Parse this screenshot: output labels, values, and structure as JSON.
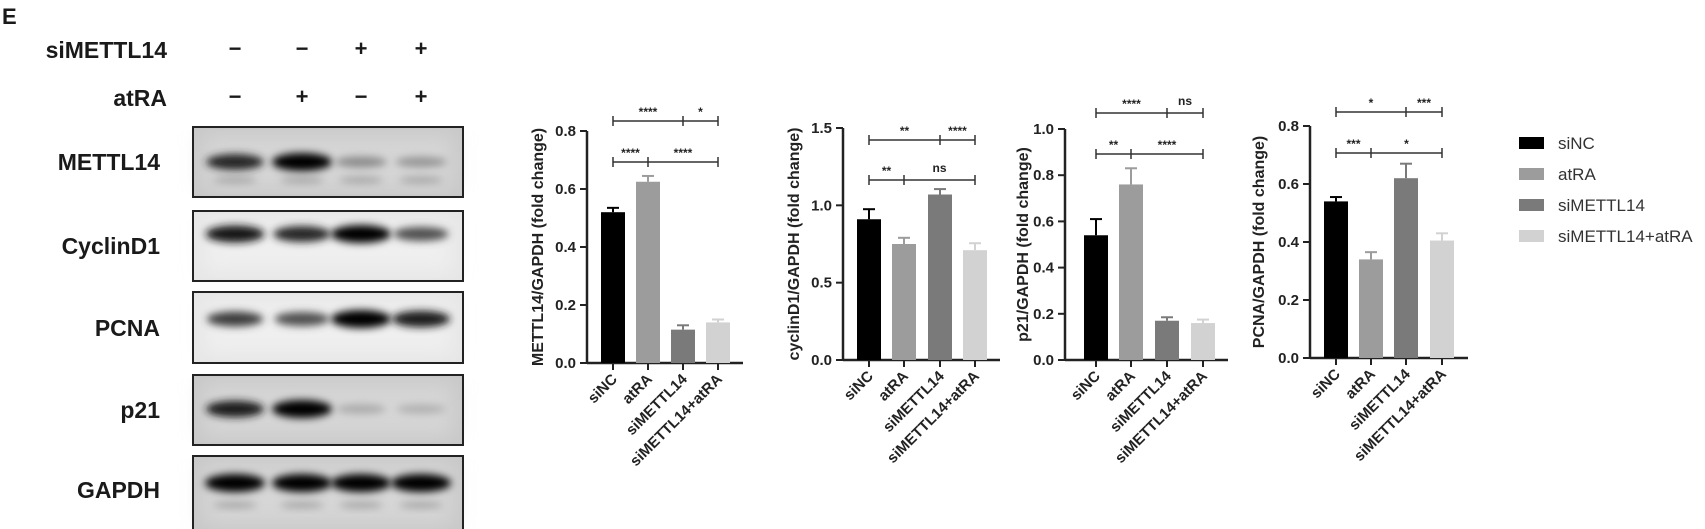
{
  "panel_label": "E",
  "blot": {
    "treatments": [
      {
        "name": "siMETTL14",
        "signs": [
          "−",
          "−",
          "+",
          "+"
        ]
      },
      {
        "name": "atRA",
        "signs": [
          "−",
          "+",
          "−",
          "+"
        ]
      }
    ],
    "rows": [
      {
        "name": "METTL14",
        "band_intensity": [
          0.8,
          1.0,
          0.3,
          0.25
        ]
      },
      {
        "name": "CyclinD1",
        "band_intensity": [
          0.9,
          0.8,
          1.0,
          0.6
        ]
      },
      {
        "name": "PCNA",
        "band_intensity": [
          0.7,
          0.6,
          1.0,
          0.85
        ]
      },
      {
        "name": "p21",
        "band_intensity": [
          0.85,
          1.0,
          0.15,
          0.12
        ]
      },
      {
        "name": "GAPDH",
        "band_intensity": [
          1.0,
          1.0,
          1.0,
          1.0
        ]
      }
    ]
  },
  "legend": [
    {
      "label": "siNC",
      "color": "#000000"
    },
    {
      "label": "atRA",
      "color": "#9c9c9c"
    },
    {
      "label": "siMETTL14",
      "color": "#7a7a7a"
    },
    {
      "label": "siMETTL14+atRA",
      "color": "#d2d2d2"
    }
  ],
  "chart_data": [
    {
      "type": "bar",
      "categories": [
        "siNC",
        "atRA",
        "siMETTL14",
        "siMETTL14+atRA"
      ],
      "values": [
        0.52,
        0.625,
        0.115,
        0.14
      ],
      "errors": [
        0.015,
        0.02,
        0.015,
        0.01
      ],
      "ylabel": "METTL14/GAPDH (fold change)",
      "ylim": [
        0,
        0.8
      ],
      "yticks": [
        "0.0",
        "0.2",
        "0.4",
        "0.6",
        "0.8"
      ],
      "significance": {
        "upper": [
          "****",
          "*"
        ],
        "lower": [
          "****",
          "****"
        ]
      }
    },
    {
      "type": "bar",
      "categories": [
        "siNC",
        "atRA",
        "siMETTL14",
        "siMETTL14+atRA"
      ],
      "values": [
        0.91,
        0.75,
        1.07,
        0.71
      ],
      "errors": [
        0.065,
        0.04,
        0.035,
        0.045
      ],
      "ylabel": "cyclinD1/GAPDH (fold change)",
      "ylim": [
        0,
        1.5
      ],
      "yticks": [
        "0.0",
        "0.5",
        "1.0",
        "1.5"
      ],
      "significance": {
        "upper": [
          "**",
          "****"
        ],
        "lower": [
          "**",
          "ns"
        ]
      }
    },
    {
      "type": "bar",
      "categories": [
        "siNC",
        "atRA",
        "siMETTL14",
        "siMETTL14+atRA"
      ],
      "values": [
        0.54,
        0.76,
        0.17,
        0.16
      ],
      "errors": [
        0.07,
        0.07,
        0.015,
        0.015
      ],
      "ylabel": "p21/GAPDH (fold change)",
      "ylim": [
        0,
        1.0
      ],
      "yticks": [
        "0.0",
        "0.2",
        "0.4",
        "0.6",
        "0.8",
        "1.0"
      ],
      "significance": {
        "upper": [
          "****",
          "ns"
        ],
        "lower": [
          "**",
          "****"
        ]
      }
    },
    {
      "type": "bar",
      "categories": [
        "siNC",
        "atRA",
        "siMETTL14",
        "siMETTL14+atRA"
      ],
      "values": [
        0.54,
        0.34,
        0.62,
        0.405
      ],
      "errors": [
        0.015,
        0.025,
        0.05,
        0.025
      ],
      "ylabel": "PCNA/GAPDH (fold change)",
      "ylim": [
        0,
        0.8
      ],
      "yticks": [
        "0.0",
        "0.2",
        "0.4",
        "0.6",
        "0.8"
      ],
      "significance": {
        "upper": [
          "*",
          "***"
        ],
        "lower": [
          "***",
          "*"
        ]
      }
    }
  ]
}
